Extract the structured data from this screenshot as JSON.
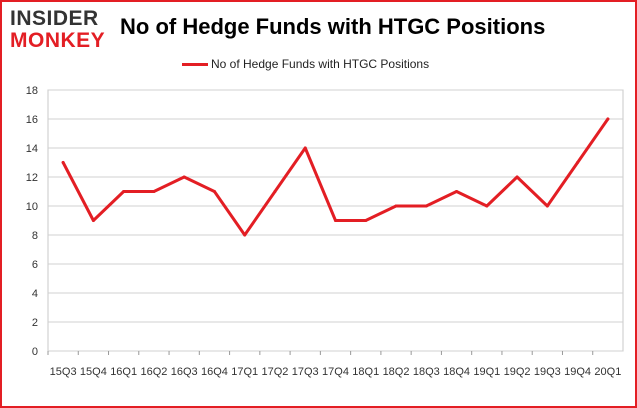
{
  "logo": {
    "line1": "INSIDER",
    "line2": "MONKEY"
  },
  "chart_data": {
    "type": "line",
    "title": "No of Hedge Funds with HTGC Positions",
    "categories": [
      "2015Q3",
      "2015Q4",
      "2016Q1",
      "2016Q2",
      "2016Q3",
      "2016Q4",
      "2017Q1",
      "2017Q2",
      "2017Q3",
      "2017Q4",
      "2018Q1",
      "2018Q2",
      "2018Q3",
      "2018Q4",
      "2019Q1",
      "2019Q2",
      "2019Q3",
      "2019Q4",
      "2020Q1"
    ],
    "tick_labels": [
      "15Q3",
      "15Q4",
      "16Q1",
      "16Q2",
      "16Q3",
      "16Q4",
      "17Q1",
      "17Q2",
      "17Q3",
      "17Q4",
      "18Q1",
      "18Q2",
      "18Q3",
      "18Q4",
      "19Q1",
      "19Q2",
      "19Q3",
      "19Q4",
      "20Q1"
    ],
    "series": [
      {
        "name": "No of Hedge Funds with HTGC Positions",
        "values": [
          13,
          9,
          11,
          11,
          12,
          11,
          8,
          11,
          14,
          9,
          9,
          10,
          10,
          11,
          10,
          12,
          10,
          13,
          16
        ]
      }
    ],
    "ylim": [
      0,
      18
    ],
    "yticks": [
      0,
      2,
      4,
      6,
      8,
      10,
      12,
      14,
      16,
      18
    ],
    "grid": true,
    "legend": "top-center",
    "color": "#e31e24"
  }
}
